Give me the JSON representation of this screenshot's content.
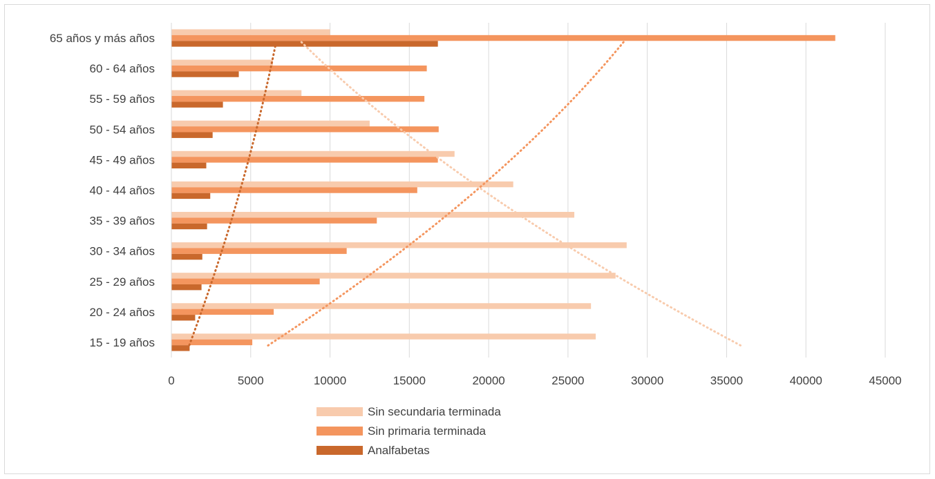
{
  "chart_data": {
    "type": "bar",
    "orientation": "horizontal",
    "categories": [
      "15 - 19  años",
      "20 - 24  años",
      "25 - 29  años",
      "30 - 34  años",
      "35 - 39  años",
      "40 - 44  años",
      "45 - 49  años",
      "50 - 54  años",
      "55 - 59  años",
      "60 - 64  años",
      "65 años y más  años"
    ],
    "series": [
      {
        "name": "Sin secundaria terminada",
        "color": "#f8cbad",
        "values": [
          26750,
          26450,
          28000,
          28700,
          25400,
          21550,
          17850,
          12500,
          8200,
          6400,
          10000
        ]
      },
      {
        "name": "Sin primaria terminada",
        "color": "#f4955e",
        "values": [
          5100,
          6450,
          9350,
          11050,
          12950,
          15500,
          16800,
          16850,
          15950,
          16100,
          41850
        ]
      },
      {
        "name": "Analfabetas",
        "color": "#c9682c",
        "values": [
          1150,
          1500,
          1900,
          1950,
          2250,
          2450,
          2200,
          2600,
          3250,
          4250,
          16800
        ]
      }
    ],
    "xlim": [
      0,
      45000
    ],
    "xticks": [
      0,
      5000,
      10000,
      15000,
      20000,
      25000,
      30000,
      35000,
      40000,
      45000
    ],
    "grid": true,
    "legend_position": "bottom",
    "trendlines": [
      {
        "series": "Sin secundaria terminada",
        "style": "dotted",
        "from": {
          "category": "65 años y más  años",
          "x": 8200
        },
        "to": {
          "category": "15 - 19  años",
          "x": 36000
        }
      },
      {
        "series": "Sin primaria terminada",
        "style": "dotted",
        "from": {
          "category": "65 años y más  años",
          "x": 28500
        },
        "to": {
          "category": "15 - 19  años",
          "x": 6000
        }
      },
      {
        "series": "Analfabetas",
        "style": "dotted",
        "from": {
          "category": "65 años y más  años",
          "x": 6600
        },
        "to": {
          "category": "15 - 19  años",
          "x": 1100
        }
      }
    ]
  }
}
